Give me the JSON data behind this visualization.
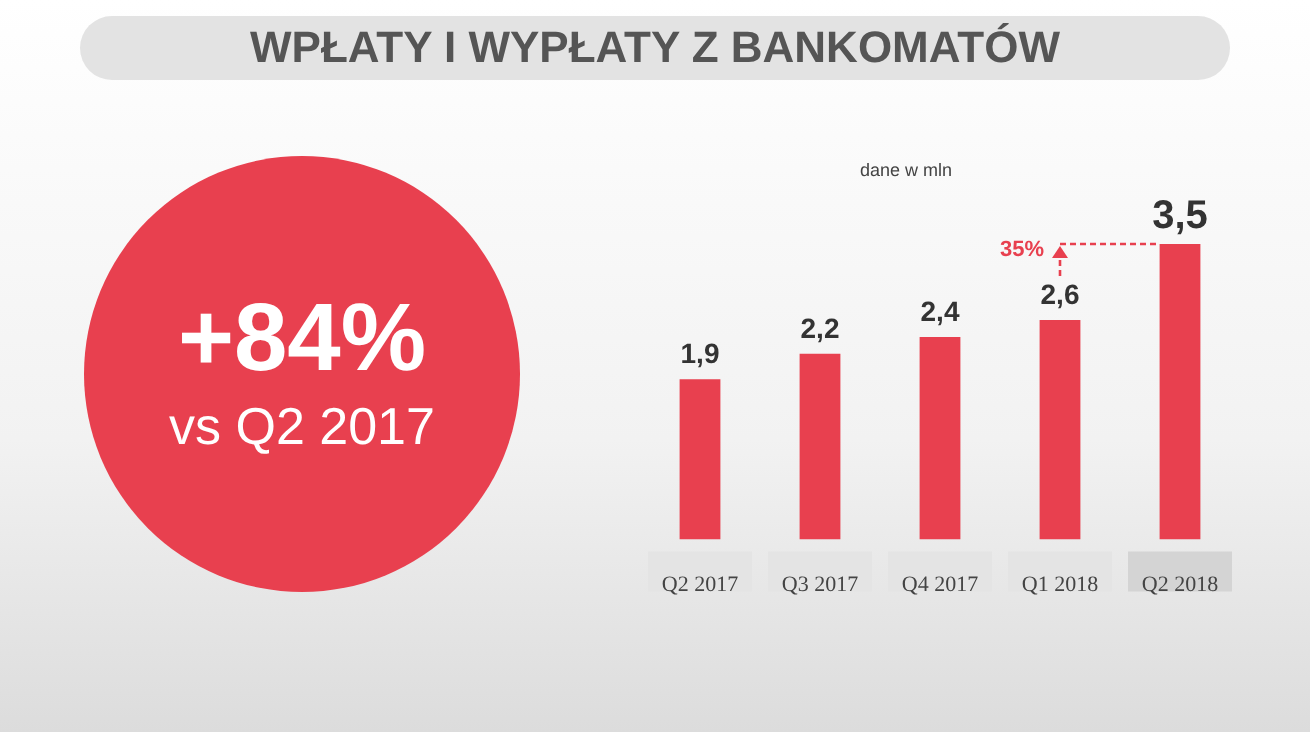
{
  "chart_data": {
    "type": "bar",
    "title": "WPŁATY I WYPŁATY Z BANKOMATÓW",
    "categories": [
      "Q2 2017",
      "Q3 2017",
      "Q4 2017",
      "Q1 2018",
      "Q2 2018"
    ],
    "values": [
      1.9,
      2.2,
      2.4,
      2.6,
      3.5
    ],
    "value_labels": [
      "1,9",
      "2,2",
      "2,4",
      "2,6",
      "3,5"
    ],
    "color": "#e8404f",
    "annotations": [
      "+84%",
      "vs Q2 2017",
      "dane w mln",
      "35%"
    ],
    "grid": false,
    "legend": false
  }
}
